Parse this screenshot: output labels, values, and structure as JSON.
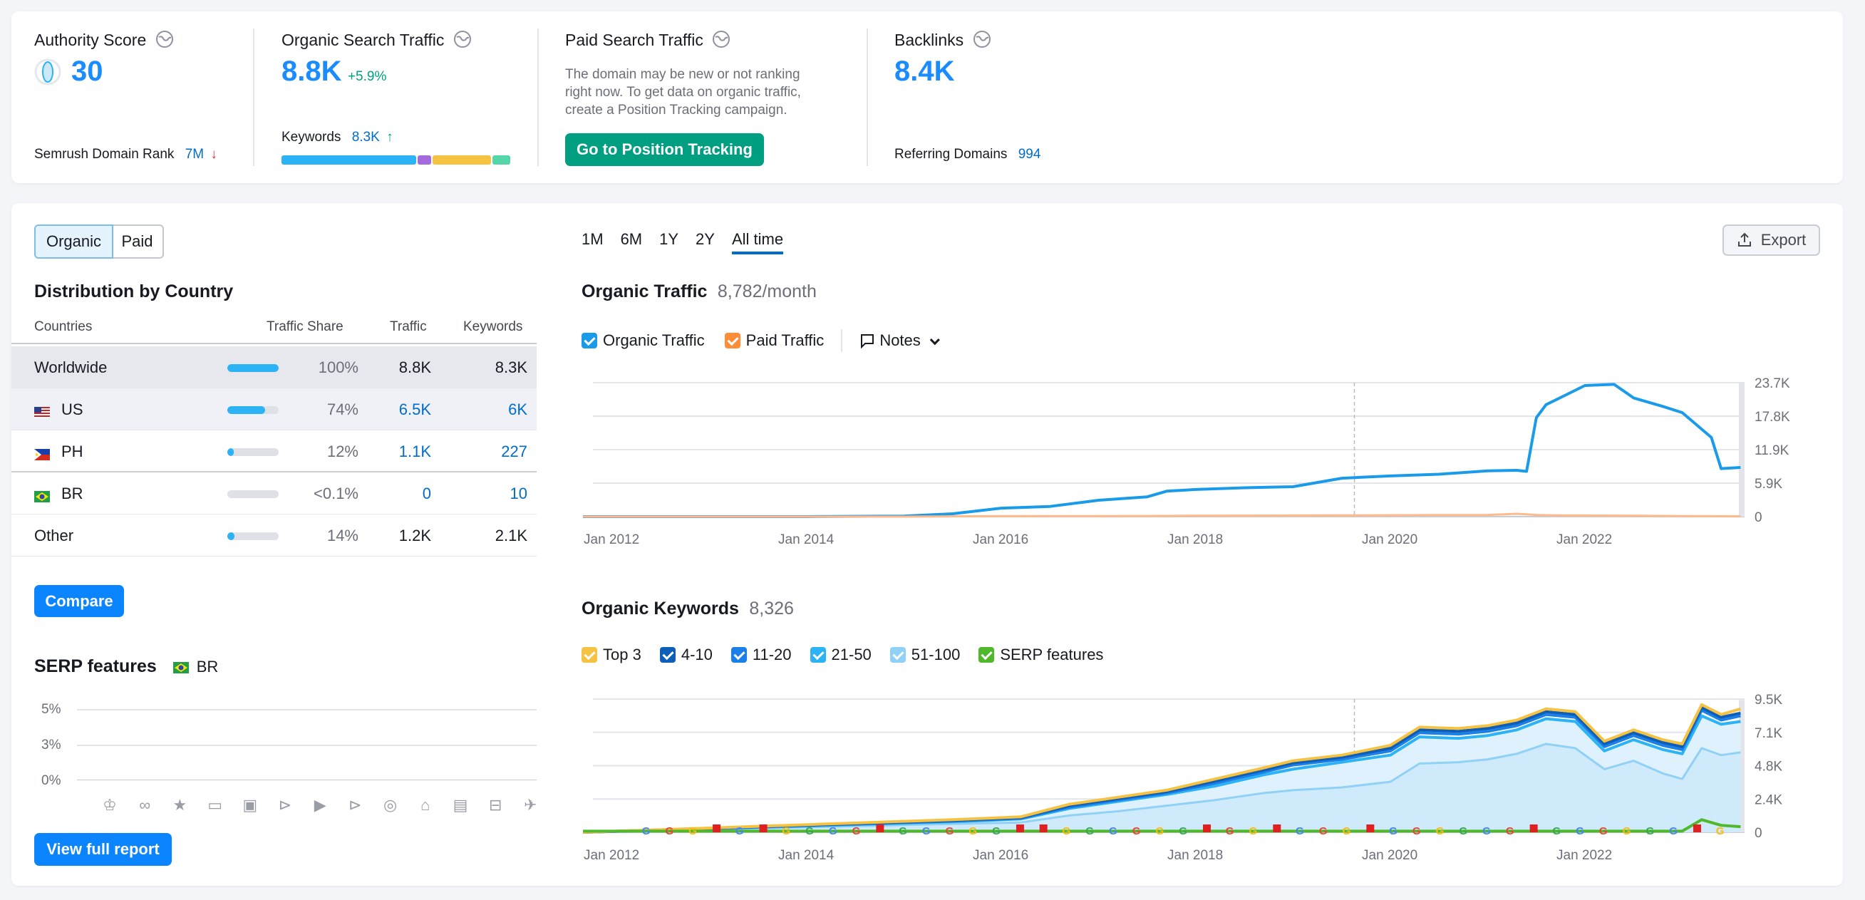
{
  "overview": {
    "authority": {
      "title": "Authority Score",
      "value": "30",
      "rank_label": "Semrush Domain Rank",
      "rank_value": "7M"
    },
    "organic": {
      "title": "Organic Search Traffic",
      "value": "8.8K",
      "change": "+5.9%",
      "keywords_label": "Keywords",
      "keywords_value": "8.3K"
    },
    "paid": {
      "title": "Paid Search Traffic",
      "desc_line1": "The domain may be new or not ranking",
      "desc_line2": "right now. To get data on organic traffic,",
      "desc_line3": "create a Position Tracking campaign.",
      "button": "Go to Position Tracking"
    },
    "backlinks": {
      "title": "Backlinks",
      "value": "8.4K",
      "ref_label": "Referring Domains",
      "ref_value": "994"
    },
    "keyword_bar": [
      {
        "color": "#2bb3f5",
        "share": 0.6
      },
      {
        "color": "#a66bdb",
        "share": 0.06
      },
      {
        "color": "#f5c242",
        "share": 0.26
      },
      {
        "color": "#55d6a8",
        "share": 0.08
      }
    ]
  },
  "toggle": {
    "organic": "Organic",
    "paid": "Paid"
  },
  "distribution": {
    "title": "Distribution by Country",
    "headers": {
      "countries": "Countries",
      "share": "Traffic Share",
      "traffic": "Traffic",
      "keywords": "Keywords"
    },
    "rows": [
      {
        "country": "Worldwide",
        "flag": "",
        "share_text": "100%",
        "share": 1.0,
        "traffic": "8.8K",
        "keywords": "8.3K"
      },
      {
        "country": "US",
        "flag": "us",
        "share_text": "74%",
        "share": 0.74,
        "traffic": "6.5K",
        "keywords": "6K"
      },
      {
        "country": "PH",
        "flag": "ph",
        "share_text": "12%",
        "share": 0.12,
        "traffic": "1.1K",
        "keywords": "227"
      },
      {
        "country": "BR",
        "flag": "br",
        "share_text": "<0.1%",
        "share": 0.0,
        "traffic": "0",
        "keywords": "10"
      },
      {
        "country": "Other",
        "flag": "",
        "share_text": "14%",
        "share": 0.14,
        "traffic": "1.2K",
        "keywords": "2.1K"
      }
    ],
    "compare_button": "Compare"
  },
  "serp": {
    "title": "SERP features",
    "country": "BR",
    "yticks": [
      "5%",
      "3%",
      "0%"
    ],
    "icons": [
      "crown-icon",
      "link-icon",
      "star-icon",
      "image-icon",
      "gallery-icon",
      "play-circle-icon",
      "video-icon",
      "play-icon",
      "pin-icon",
      "graduation-cap-icon",
      "document-icon",
      "briefcase-icon",
      "twitter-icon"
    ],
    "button": "View full report"
  },
  "ranges": [
    "1M",
    "6M",
    "1Y",
    "2Y",
    "All time"
  ],
  "active_range": "All time",
  "export_label": "Export",
  "traffic_chart": {
    "title": "Organic Traffic",
    "subtitle": "8,782/month",
    "legend": [
      {
        "label": "Organic Traffic",
        "color": "#1a9bea",
        "checked": true
      },
      {
        "label": "Paid Traffic",
        "color": "#ff8c37",
        "checked": true
      }
    ],
    "notes_label": "Notes"
  },
  "keywords_chart": {
    "title": "Organic Keywords",
    "subtitle": "8,326",
    "legend": [
      {
        "label": "Top 3",
        "color": "#f5c242"
      },
      {
        "label": "4-10",
        "color": "#0d5eb8"
      },
      {
        "label": "11-20",
        "color": "#1a7fe6"
      },
      {
        "label": "21-50",
        "color": "#2bb3f5"
      },
      {
        "label": "51-100",
        "color": "#90d1f7"
      },
      {
        "label": "SERP features",
        "color": "#4fb82b"
      }
    ]
  },
  "chart_data": [
    {
      "type": "line",
      "title": "Organic Traffic",
      "x": [
        2011.7,
        2014.0,
        2015.0,
        2015.5,
        2016.0,
        2016.5,
        2017.0,
        2017.5,
        2017.7,
        2018.0,
        2018.5,
        2019.0,
        2019.5,
        2020.0,
        2020.5,
        2021.0,
        2021.3,
        2021.4,
        2021.5,
        2021.6,
        2021.8,
        2022.0,
        2022.3,
        2022.5,
        2022.8,
        2023.0,
        2023.3,
        2023.4,
        2023.6
      ],
      "series": [
        {
          "name": "Organic Traffic",
          "values": [
            0,
            0,
            100,
            500,
            1500,
            1800,
            2900,
            3500,
            4500,
            4800,
            5100,
            5300,
            6800,
            7200,
            7500,
            8100,
            8200,
            8000,
            17500,
            19800,
            21500,
            23200,
            23400,
            21000,
            19500,
            18400,
            14000,
            8500,
            8700
          ]
        },
        {
          "name": "Paid Traffic",
          "values": [
            0,
            0,
            0,
            50,
            80,
            90,
            100,
            110,
            120,
            150,
            180,
            200,
            220,
            250,
            280,
            300,
            500,
            400,
            300,
            250,
            200,
            200,
            180,
            150,
            120,
            100,
            80,
            60,
            50
          ]
        }
      ],
      "x_ticks": [
        "Jan 2012",
        "Jan 2014",
        "Jan 2016",
        "Jan 2018",
        "Jan 2020",
        "Jan 2022"
      ],
      "y_ticks": [
        "0",
        "5.9K",
        "11.9K",
        "17.8K",
        "23.7K"
      ],
      "ylim": [
        0,
        23700
      ],
      "grid": true
    },
    {
      "type": "area",
      "title": "Organic Keywords",
      "x": [
        2011.7,
        2015.5,
        2016.2,
        2016.7,
        2017.2,
        2017.7,
        2018.2,
        2018.7,
        2019.0,
        2019.5,
        2020.0,
        2020.3,
        2020.7,
        2021.0,
        2021.3,
        2021.6,
        2021.9,
        2022.2,
        2022.5,
        2022.8,
        2023.0,
        2023.2,
        2023.4,
        2023.6
      ],
      "series": [
        {
          "name": "Top 3",
          "values": [
            0,
            900,
            1100,
            2000,
            2500,
            3000,
            3800,
            4600,
            5100,
            5500,
            6200,
            7500,
            7400,
            7600,
            8000,
            8800,
            8600,
            6500,
            7300,
            6600,
            6300,
            9100,
            8400,
            8800
          ]
        },
        {
          "name": "4-10",
          "values": [
            0,
            850,
            1050,
            1900,
            2400,
            2900,
            3650,
            4450,
            4950,
            5350,
            6000,
            7300,
            7200,
            7400,
            7800,
            8600,
            8400,
            6300,
            7100,
            6400,
            6100,
            8900,
            8200,
            8500
          ]
        },
        {
          "name": "11-20",
          "values": [
            0,
            800,
            1000,
            1800,
            2300,
            2800,
            3500,
            4300,
            4800,
            5200,
            5800,
            7100,
            7000,
            7200,
            7600,
            8400,
            8200,
            6100,
            6900,
            6200,
            5900,
            8700,
            8000,
            8300
          ]
        },
        {
          "name": "21-50",
          "values": [
            0,
            750,
            950,
            1700,
            2200,
            2700,
            3300,
            4100,
            4500,
            5000,
            5500,
            6800,
            6700,
            6900,
            7300,
            8100,
            7900,
            5800,
            6600,
            5900,
            5600,
            8300,
            7700,
            7900
          ]
        },
        {
          "name": "51-100",
          "values": [
            0,
            600,
            700,
            1200,
            1500,
            1900,
            2300,
            2800,
            3000,
            3200,
            3600,
            4900,
            5000,
            5200,
            5600,
            6300,
            6000,
            4500,
            5100,
            4200,
            3800,
            6000,
            5500,
            5700
          ]
        },
        {
          "name": "SERP features",
          "values": [
            80,
            80,
            80,
            80,
            80,
            80,
            80,
            80,
            80,
            80,
            80,
            80,
            80,
            80,
            80,
            80,
            80,
            80,
            80,
            80,
            80,
            900,
            500,
            400
          ]
        }
      ],
      "x_ticks": [
        "Jan 2012",
        "Jan 2014",
        "Jan 2016",
        "Jan 2018",
        "Jan 2020",
        "Jan 2022"
      ],
      "y_ticks": [
        "0",
        "2.4K",
        "4.8K",
        "7.1K",
        "9.5K"
      ],
      "ylim": [
        0,
        9500
      ],
      "grid": true
    }
  ]
}
